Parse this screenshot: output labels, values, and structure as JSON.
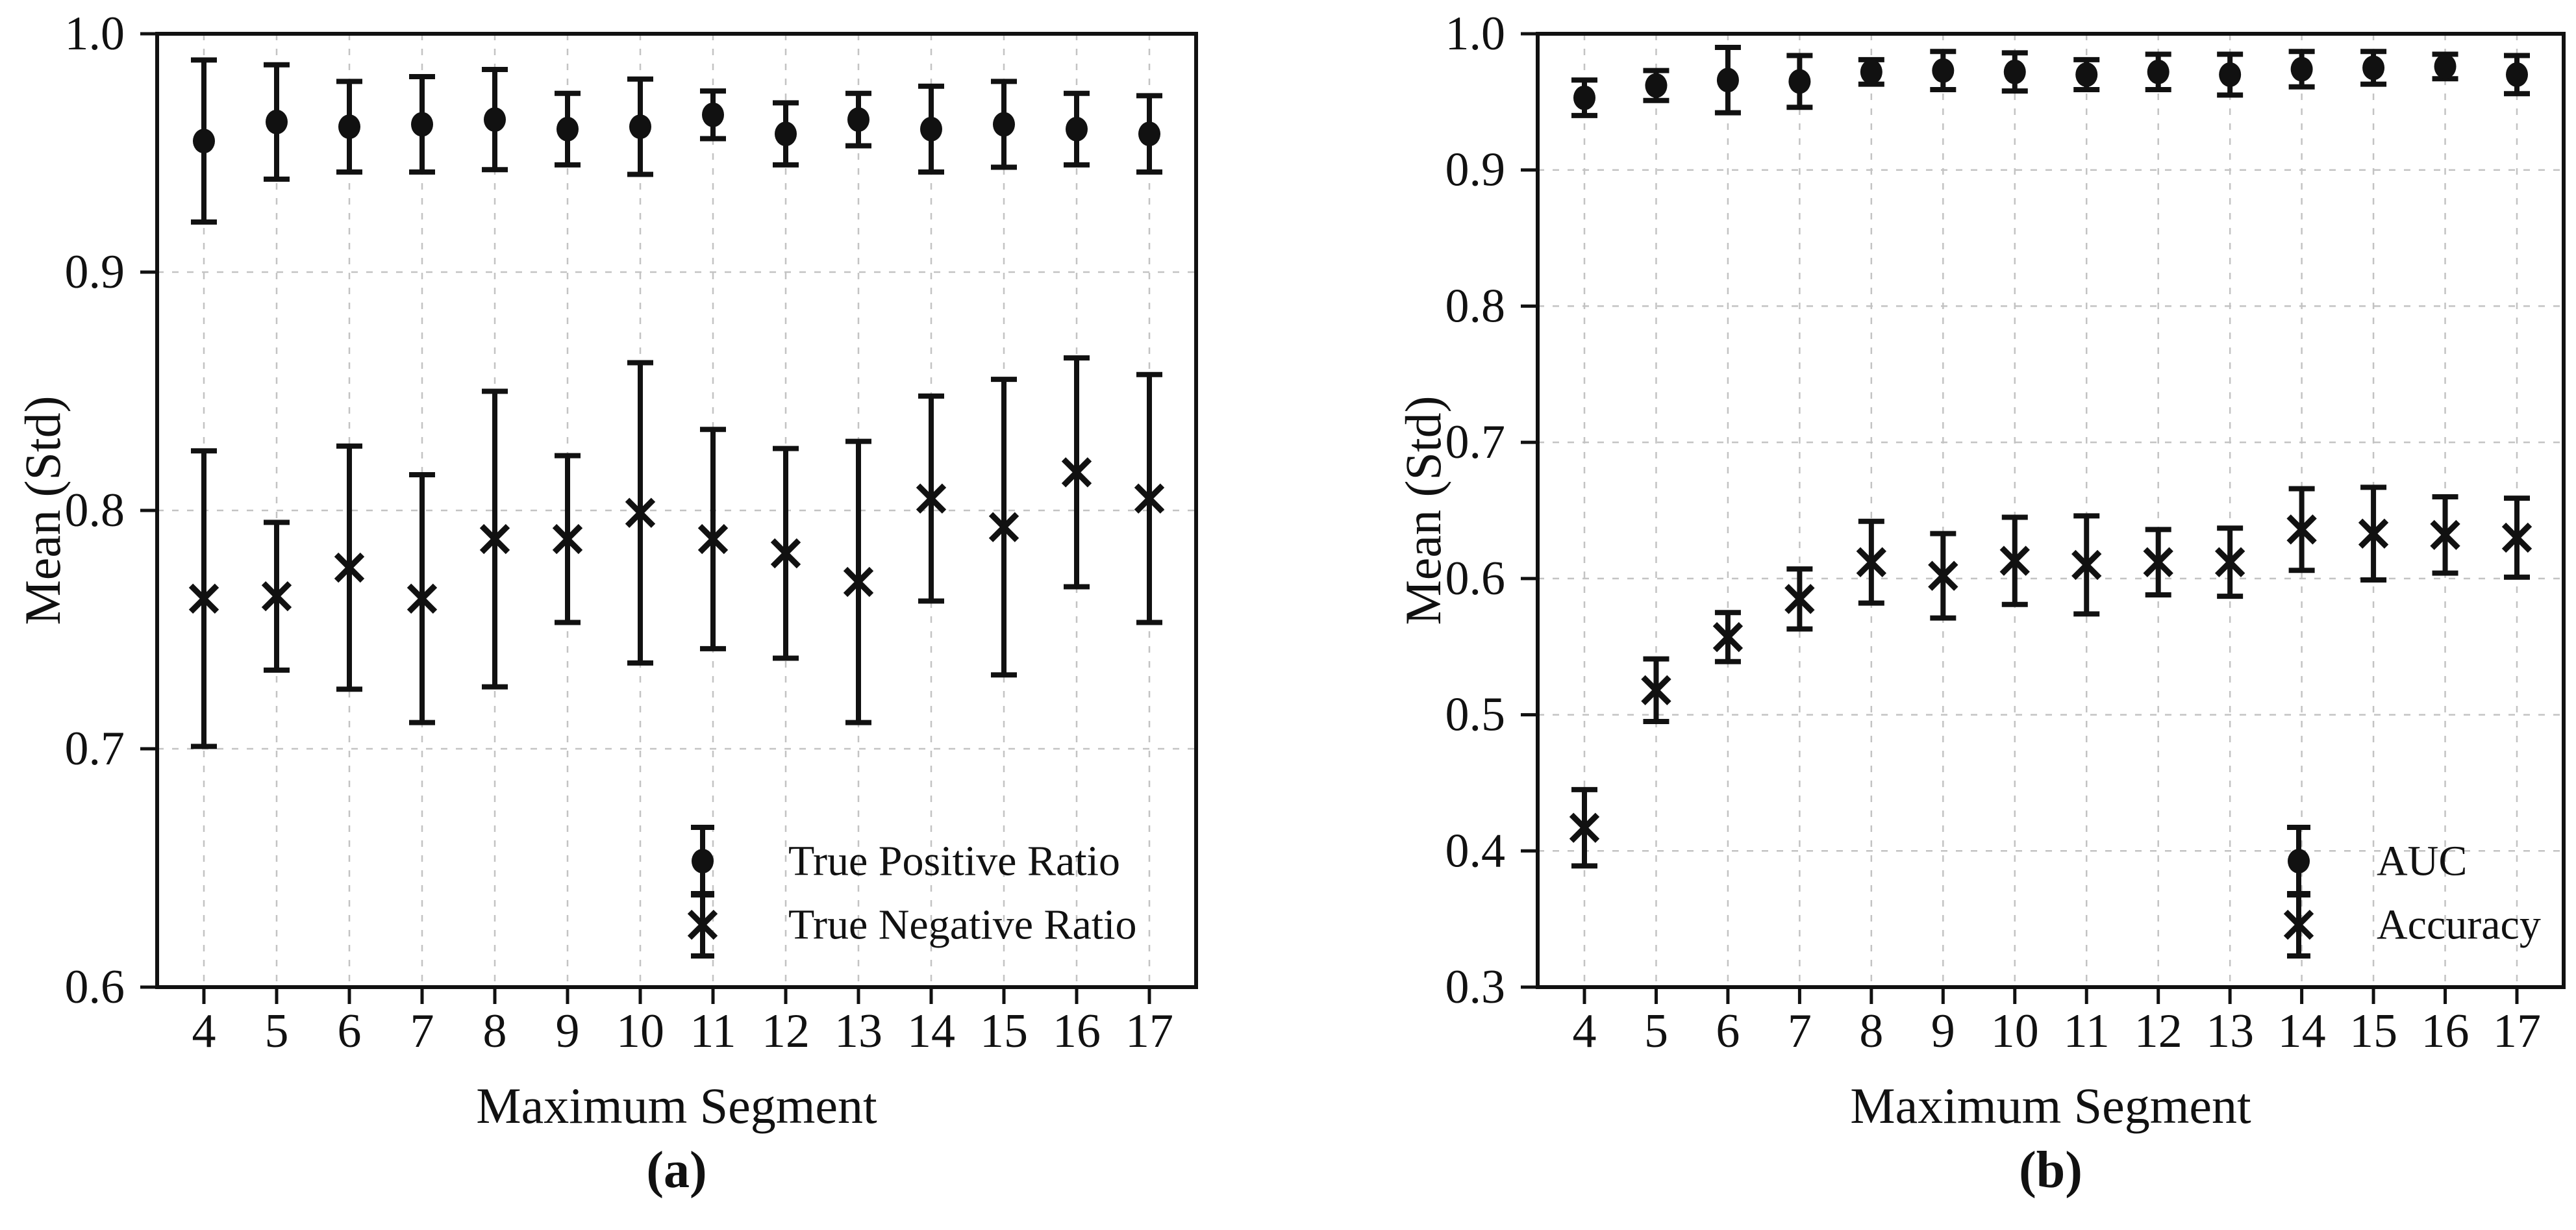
{
  "figure": {
    "background": "#ffffff",
    "ink_color": "#111111",
    "grid_color": "#c3c3c3"
  },
  "chart_data": [
    {
      "panel": "a",
      "caption": "(a)",
      "type": "scatter",
      "subtype": "errorbar",
      "xlabel": "Maximum Segment",
      "ylabel": "Mean (Std)",
      "x": [
        4,
        5,
        6,
        7,
        8,
        9,
        10,
        11,
        12,
        13,
        14,
        15,
        16,
        17
      ],
      "ylim": [
        0.6,
        1.0
      ],
      "yticks": [
        "1.0",
        "0.9",
        "0.8",
        "0.7",
        "0.6"
      ],
      "grid": true,
      "legend_position": "lower right",
      "series": [
        {
          "name": "True Positive Ratio",
          "marker": "circle",
          "means": [
            0.955,
            0.963,
            0.961,
            0.962,
            0.964,
            0.96,
            0.961,
            0.966,
            0.958,
            0.964,
            0.96,
            0.962,
            0.96,
            0.958
          ],
          "std": [
            0.034,
            0.024,
            0.019,
            0.02,
            0.021,
            0.015,
            0.02,
            0.01,
            0.013,
            0.011,
            0.018,
            0.018,
            0.015,
            0.016
          ]
        },
        {
          "name": "True Negative Ratio",
          "marker": "x",
          "means": [
            0.763,
            0.764,
            0.776,
            0.763,
            0.788,
            0.788,
            0.799,
            0.788,
            0.782,
            0.77,
            0.805,
            0.793,
            0.816,
            0.805
          ],
          "std": [
            0.062,
            0.031,
            0.051,
            0.052,
            0.062,
            0.035,
            0.063,
            0.046,
            0.044,
            0.059,
            0.043,
            0.062,
            0.048,
            0.052
          ]
        }
      ]
    },
    {
      "panel": "b",
      "caption": "(b)",
      "type": "scatter",
      "subtype": "errorbar",
      "xlabel": "Maximum Segment",
      "ylabel": "Mean (Std)",
      "x": [
        4,
        5,
        6,
        7,
        8,
        9,
        10,
        11,
        12,
        13,
        14,
        15,
        16,
        17
      ],
      "ylim": [
        0.3,
        1.0
      ],
      "yticks": [
        "1.0",
        "0.9",
        "0.8",
        "0.7",
        "0.6",
        "0.5",
        "0.4",
        "0.3"
      ],
      "grid": true,
      "legend_position": "lower right",
      "series": [
        {
          "name": "AUC",
          "marker": "circle",
          "means": [
            0.953,
            0.962,
            0.966,
            0.965,
            0.972,
            0.973,
            0.972,
            0.97,
            0.972,
            0.97,
            0.974,
            0.975,
            0.976,
            0.97
          ],
          "std": [
            0.013,
            0.011,
            0.024,
            0.019,
            0.009,
            0.014,
            0.014,
            0.011,
            0.013,
            0.015,
            0.013,
            0.012,
            0.009,
            0.014
          ]
        },
        {
          "name": "Accuracy",
          "marker": "x",
          "means": [
            0.417,
            0.518,
            0.557,
            0.585,
            0.612,
            0.602,
            0.613,
            0.61,
            0.612,
            0.612,
            0.636,
            0.633,
            0.632,
            0.63
          ],
          "std": [
            0.028,
            0.023,
            0.018,
            0.022,
            0.03,
            0.031,
            0.032,
            0.036,
            0.024,
            0.025,
            0.03,
            0.034,
            0.028,
            0.029
          ]
        }
      ]
    }
  ]
}
